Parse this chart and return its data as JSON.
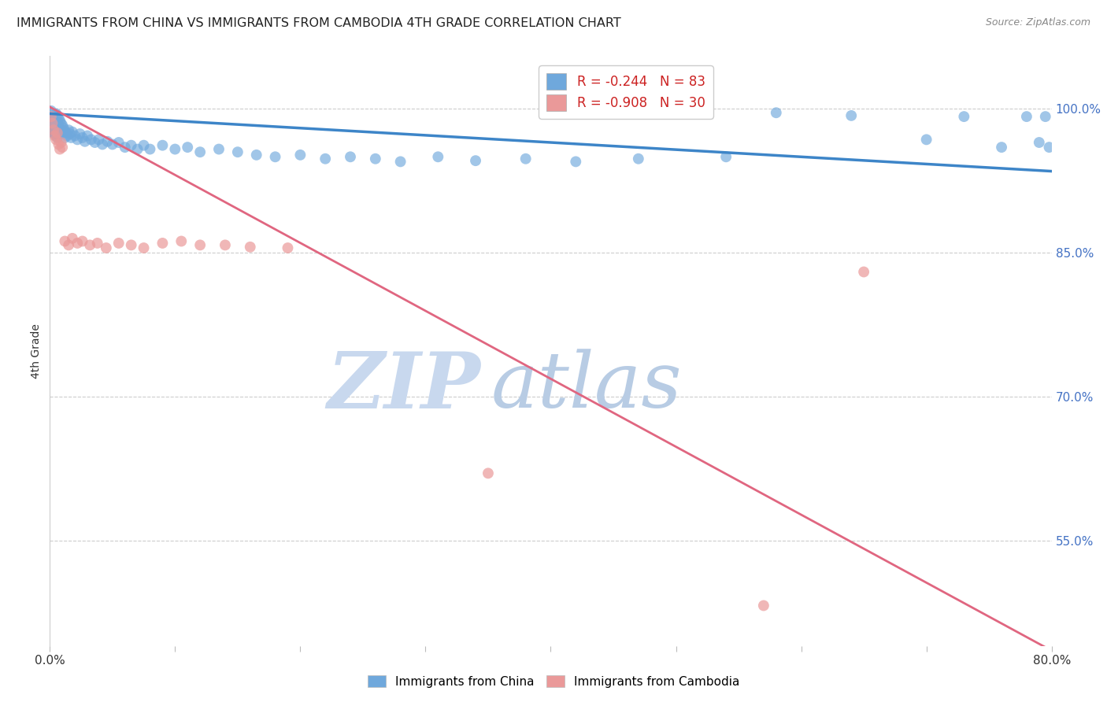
{
  "title": "IMMIGRANTS FROM CHINA VS IMMIGRANTS FROM CAMBODIA 4TH GRADE CORRELATION CHART",
  "source": "Source: ZipAtlas.com",
  "ylabel": "4th Grade",
  "ytick_labels": [
    "100.0%",
    "85.0%",
    "70.0%",
    "55.0%"
  ],
  "ytick_values": [
    1.0,
    0.85,
    0.7,
    0.55
  ],
  "xmin": 0.0,
  "xmax": 0.8,
  "ymin": 0.44,
  "ymax": 1.055,
  "china_R": -0.244,
  "china_N": 83,
  "cambodia_R": -0.908,
  "cambodia_N": 30,
  "china_color": "#6fa8dc",
  "cambodia_color": "#ea9999",
  "china_line_color": "#3d85c8",
  "cambodia_line_color": "#e06680",
  "watermark_zip": "ZIP",
  "watermark_atlas": "atlas",
  "watermark_color_zip": "#c8d8ee",
  "watermark_color_atlas": "#b8cce4",
  "background_color": "#ffffff",
  "china_line_y0": 0.995,
  "china_line_y1": 0.935,
  "cambodia_line_y0": 1.002,
  "cambodia_line_y1": 0.435,
  "china_x": [
    0.001,
    0.001,
    0.002,
    0.002,
    0.002,
    0.003,
    0.003,
    0.003,
    0.004,
    0.004,
    0.004,
    0.005,
    0.005,
    0.005,
    0.005,
    0.006,
    0.006,
    0.006,
    0.006,
    0.007,
    0.007,
    0.007,
    0.008,
    0.008,
    0.009,
    0.009,
    0.01,
    0.01,
    0.011,
    0.012,
    0.012,
    0.013,
    0.014,
    0.015,
    0.016,
    0.017,
    0.018,
    0.02,
    0.022,
    0.024,
    0.026,
    0.028,
    0.03,
    0.033,
    0.036,
    0.039,
    0.042,
    0.046,
    0.05,
    0.055,
    0.06,
    0.065,
    0.07,
    0.075,
    0.08,
    0.09,
    0.1,
    0.11,
    0.12,
    0.135,
    0.15,
    0.165,
    0.18,
    0.2,
    0.22,
    0.24,
    0.26,
    0.28,
    0.31,
    0.34,
    0.38,
    0.42,
    0.47,
    0.54,
    0.58,
    0.64,
    0.7,
    0.73,
    0.76,
    0.78,
    0.79,
    0.795,
    0.798
  ],
  "china_y": [
    0.998,
    0.99,
    0.995,
    0.985,
    0.978,
    0.992,
    0.983,
    0.975,
    0.99,
    0.982,
    0.974,
    0.995,
    0.988,
    0.98,
    0.972,
    0.993,
    0.986,
    0.978,
    0.97,
    0.99,
    0.982,
    0.974,
    0.988,
    0.979,
    0.985,
    0.976,
    0.983,
    0.975,
    0.98,
    0.977,
    0.97,
    0.975,
    0.972,
    0.978,
    0.974,
    0.97,
    0.976,
    0.972,
    0.968,
    0.974,
    0.97,
    0.966,
    0.972,
    0.968,
    0.965,
    0.968,
    0.963,
    0.966,
    0.963,
    0.965,
    0.96,
    0.962,
    0.958,
    0.962,
    0.958,
    0.962,
    0.958,
    0.96,
    0.955,
    0.958,
    0.955,
    0.952,
    0.95,
    0.952,
    0.948,
    0.95,
    0.948,
    0.945,
    0.95,
    0.946,
    0.948,
    0.945,
    0.948,
    0.95,
    0.996,
    0.993,
    0.968,
    0.992,
    0.96,
    0.992,
    0.965,
    0.992,
    0.96
  ],
  "cambodia_x": [
    0.001,
    0.002,
    0.003,
    0.004,
    0.005,
    0.006,
    0.007,
    0.008,
    0.009,
    0.01,
    0.012,
    0.015,
    0.018,
    0.022,
    0.026,
    0.032,
    0.038,
    0.045,
    0.055,
    0.065,
    0.075,
    0.09,
    0.105,
    0.12,
    0.14,
    0.16,
    0.19,
    0.35,
    0.57,
    0.65
  ],
  "cambodia_y": [
    0.992,
    0.985,
    0.978,
    0.972,
    0.968,
    0.975,
    0.963,
    0.958,
    0.965,
    0.96,
    0.862,
    0.858,
    0.865,
    0.86,
    0.862,
    0.858,
    0.86,
    0.855,
    0.86,
    0.858,
    0.855,
    0.86,
    0.862,
    0.858,
    0.858,
    0.856,
    0.855,
    0.62,
    0.482,
    0.83
  ]
}
